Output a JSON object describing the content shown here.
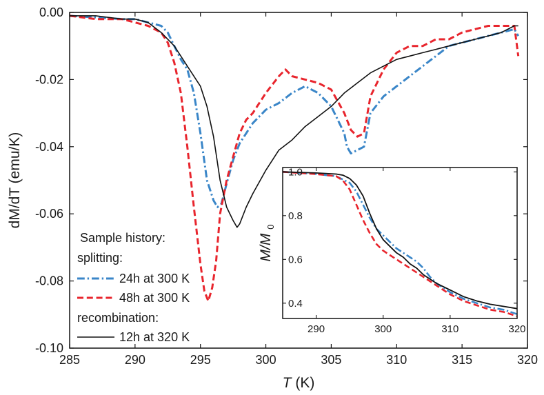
{
  "chart_data": [
    {
      "type": "line",
      "title": "",
      "xlabel_main": "T",
      "xlabel_unit": "(K)",
      "ylabel_main": "dM/dT",
      "ylabel_unit": "(emu/K)",
      "xlim": [
        285,
        320
      ],
      "ylim": [
        -0.1,
        0.0
      ],
      "xticks": [
        285,
        290,
        295,
        300,
        305,
        310,
        315,
        320
      ],
      "xtick_labels": [
        "285",
        "290",
        "295",
        "300",
        "305",
        "310",
        "315",
        "320"
      ],
      "yticks": [
        0.0,
        -0.02,
        -0.04,
        -0.06,
        -0.08,
        -0.1
      ],
      "ytick_labels": [
        "0.00",
        "-0.02",
        "-0.04",
        "-0.06",
        "-0.08",
        "-0.10"
      ],
      "legend": {
        "placement": "bottom-left",
        "header": "Sample history:",
        "group1": "splitting:",
        "group2": "recombination:"
      },
      "series": [
        {
          "name": "24h at 300 K",
          "color": "#3a86c8",
          "style": "dash-dot",
          "x": [
            285,
            287,
            289,
            290,
            291,
            292,
            292.5,
            293,
            293.5,
            294,
            294.5,
            295,
            295.5,
            296,
            296.3,
            296.6,
            297,
            297.5,
            298,
            298.5,
            299,
            300,
            301,
            302,
            303,
            304,
            305,
            306,
            306.2,
            306.5,
            307,
            307.5,
            308,
            309,
            310,
            311,
            312,
            313,
            314,
            315,
            316,
            317,
            318,
            319,
            319.3
          ],
          "y": [
            -0.001,
            -0.0015,
            -0.002,
            -0.002,
            -0.003,
            -0.004,
            -0.006,
            -0.01,
            -0.014,
            -0.017,
            -0.024,
            -0.036,
            -0.05,
            -0.056,
            -0.058,
            -0.057,
            -0.051,
            -0.044,
            -0.039,
            -0.036,
            -0.033,
            -0.029,
            -0.027,
            -0.024,
            -0.022,
            -0.024,
            -0.028,
            -0.036,
            -0.04,
            -0.042,
            -0.041,
            -0.04,
            -0.03,
            -0.025,
            -0.022,
            -0.019,
            -0.016,
            -0.013,
            -0.01,
            -0.009,
            -0.008,
            -0.007,
            -0.006,
            -0.005,
            -0.007
          ]
        },
        {
          "name": "48h at 300 K",
          "color": "#e8252d",
          "style": "dash",
          "x": [
            285,
            287,
            289,
            290,
            291,
            292,
            292.5,
            293,
            293.5,
            294,
            294.5,
            295,
            295.3,
            295.6,
            295.9,
            296.2,
            296.5,
            297,
            297.5,
            298,
            298.5,
            299,
            300,
            301,
            301.5,
            302,
            303,
            304,
            305,
            306,
            306.5,
            307,
            307.5,
            308,
            309,
            310,
            311,
            312,
            313,
            314,
            315,
            316,
            317,
            318,
            319,
            319.3
          ],
          "y": [
            -0.001,
            -0.002,
            -0.002,
            -0.003,
            -0.004,
            -0.006,
            -0.009,
            -0.015,
            -0.024,
            -0.04,
            -0.058,
            -0.075,
            -0.083,
            -0.086,
            -0.082,
            -0.074,
            -0.06,
            -0.05,
            -0.043,
            -0.036,
            -0.032,
            -0.03,
            -0.024,
            -0.019,
            -0.017,
            -0.019,
            -0.02,
            -0.021,
            -0.023,
            -0.03,
            -0.035,
            -0.037,
            -0.036,
            -0.025,
            -0.017,
            -0.012,
            -0.01,
            -0.01,
            -0.008,
            -0.008,
            -0.006,
            -0.005,
            -0.004,
            -0.004,
            -0.004,
            -0.013
          ]
        },
        {
          "name": "12h at 320 K",
          "color": "#111111",
          "style": "solid",
          "x": [
            285,
            287,
            289,
            290,
            291,
            292,
            293,
            294,
            295,
            295.5,
            296,
            296.5,
            297,
            297.5,
            297.8,
            298,
            298.5,
            299,
            300,
            301,
            302,
            303,
            304,
            305,
            306,
            307,
            308,
            309,
            310,
            311,
            312,
            313,
            314,
            315,
            316,
            317,
            318,
            319,
            319.3
          ],
          "y": [
            -0.001,
            -0.001,
            -0.002,
            -0.002,
            -0.003,
            -0.006,
            -0.01,
            -0.016,
            -0.022,
            -0.028,
            -0.037,
            -0.05,
            -0.058,
            -0.062,
            -0.064,
            -0.063,
            -0.058,
            -0.054,
            -0.047,
            -0.041,
            -0.038,
            -0.034,
            -0.031,
            -0.028,
            -0.024,
            -0.021,
            -0.018,
            -0.016,
            -0.014,
            -0.013,
            -0.012,
            -0.011,
            -0.01,
            -0.009,
            -0.008,
            -0.007,
            -0.006,
            -0.004,
            -0.004
          ]
        }
      ]
    },
    {
      "type": "line",
      "title": "",
      "placement": "inset-bottom-right",
      "ylabel_main": "M/M",
      "ylabel_sub": "0",
      "xlim": [
        285,
        320
      ],
      "ylim": [
        0.33,
        1.02
      ],
      "xticks": [
        290,
        300,
        310,
        320
      ],
      "xtick_labels": [
        "290",
        "300",
        "310",
        "320"
      ],
      "yticks": [
        0.4,
        0.6,
        0.8,
        1.0
      ],
      "ytick_labels": [
        "0.4",
        "0.6",
        "0.8",
        "1.0"
      ],
      "series": [
        {
          "color": "#3a86c8",
          "style": "dash-dot",
          "x": [
            285,
            290,
            293,
            295,
            296,
            297,
            298,
            299,
            300,
            301,
            302,
            303,
            304,
            305,
            306,
            307,
            308,
            310,
            312,
            314,
            316,
            318,
            320
          ],
          "y": [
            1.0,
            0.99,
            0.98,
            0.95,
            0.91,
            0.85,
            0.79,
            0.74,
            0.71,
            0.68,
            0.65,
            0.63,
            0.61,
            0.59,
            0.56,
            0.52,
            0.49,
            0.45,
            0.42,
            0.4,
            0.38,
            0.37,
            0.35
          ]
        },
        {
          "color": "#e8252d",
          "style": "dash",
          "x": [
            285,
            290,
            293,
            294,
            295,
            296,
            297,
            298,
            299,
            300,
            301,
            302,
            303,
            304,
            305,
            306,
            307,
            308,
            310,
            312,
            314,
            316,
            318,
            320
          ],
          "y": [
            1.0,
            0.99,
            0.98,
            0.96,
            0.92,
            0.85,
            0.78,
            0.72,
            0.67,
            0.64,
            0.62,
            0.6,
            0.58,
            0.56,
            0.54,
            0.52,
            0.5,
            0.48,
            0.44,
            0.41,
            0.39,
            0.37,
            0.36,
            0.34
          ]
        },
        {
          "color": "#111111",
          "style": "solid",
          "x": [
            285,
            290,
            293,
            294,
            295,
            296,
            297,
            298,
            299,
            300,
            301,
            302,
            303,
            304,
            305,
            306,
            307,
            308,
            310,
            312,
            314,
            316,
            318,
            320
          ],
          "y": [
            1.0,
            0.995,
            0.99,
            0.985,
            0.97,
            0.94,
            0.89,
            0.81,
            0.74,
            0.69,
            0.66,
            0.63,
            0.61,
            0.58,
            0.56,
            0.53,
            0.51,
            0.49,
            0.46,
            0.43,
            0.41,
            0.395,
            0.385,
            0.375
          ]
        }
      ]
    }
  ]
}
